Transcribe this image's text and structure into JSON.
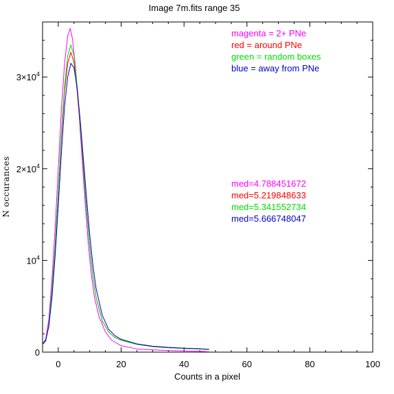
{
  "chart_data": {
    "type": "line",
    "title": "Image 7m.fits   range 35",
    "xlabel": "Counts in a pixel",
    "ylabel": "N occurances",
    "xlim": [
      -5,
      100
    ],
    "ylim": [
      0,
      36000
    ],
    "x_ticks": [
      0,
      20,
      40,
      60,
      80,
      100
    ],
    "x_tick_labels": [
      "0",
      "20",
      "40",
      "60",
      "80",
      "100"
    ],
    "y_ticks": [
      0,
      10000,
      20000,
      30000
    ],
    "y_tick_labels": [
      {
        "base": "0",
        "exp": ""
      },
      {
        "base": "10",
        "exp": "4"
      },
      {
        "base": "2×10",
        "exp": "4"
      },
      {
        "base": "3×10",
        "exp": "4"
      }
    ],
    "legend_position": "top-right",
    "series": [
      {
        "name": "magenta = 2+ PNe",
        "color": "#ff00ff",
        "points": [
          [
            -5,
            900
          ],
          [
            -4,
            1400
          ],
          [
            -3,
            3600
          ],
          [
            -2,
            8000
          ],
          [
            -1,
            13500
          ],
          [
            0,
            20000
          ],
          [
            1,
            26500
          ],
          [
            2,
            31500
          ],
          [
            3,
            34500
          ],
          [
            3.8,
            35300
          ],
          [
            4.5,
            34200
          ],
          [
            5.5,
            31000
          ],
          [
            6.5,
            26500
          ],
          [
            7.5,
            21500
          ],
          [
            8.5,
            16500
          ],
          [
            9.5,
            12000
          ],
          [
            10.5,
            8500
          ],
          [
            11.5,
            6000
          ],
          [
            13,
            3800
          ],
          [
            15,
            2200
          ],
          [
            17,
            1300
          ],
          [
            20,
            700
          ],
          [
            25,
            350
          ],
          [
            30,
            250
          ],
          [
            35,
            180
          ],
          [
            40,
            130
          ],
          [
            45,
            80
          ],
          [
            48,
            50
          ]
        ],
        "median_label": "med=4.788451672"
      },
      {
        "name": "red = around PNe",
        "color": "#ff0000",
        "points": [
          [
            -5,
            800
          ],
          [
            -4,
            1200
          ],
          [
            -3,
            3000
          ],
          [
            -2,
            6800
          ],
          [
            -1,
            11500
          ],
          [
            0,
            17500
          ],
          [
            1,
            23500
          ],
          [
            2,
            28500
          ],
          [
            3,
            31500
          ],
          [
            4,
            32700
          ],
          [
            5,
            31600
          ],
          [
            6,
            28500
          ],
          [
            7,
            24500
          ],
          [
            8,
            20000
          ],
          [
            9,
            15500
          ],
          [
            10,
            11500
          ],
          [
            11,
            8300
          ],
          [
            12,
            6000
          ],
          [
            14,
            3400
          ],
          [
            16,
            2200
          ],
          [
            18,
            1600
          ],
          [
            20,
            1300
          ],
          [
            25,
            850
          ],
          [
            30,
            600
          ],
          [
            35,
            480
          ],
          [
            40,
            400
          ],
          [
            45,
            350
          ],
          [
            48,
            300
          ]
        ],
        "median_label": "med=5.219848633"
      },
      {
        "name": "green = random boxes",
        "color": "#00dd00",
        "points": [
          [
            -5,
            800
          ],
          [
            -4,
            1200
          ],
          [
            -3,
            3000
          ],
          [
            -2,
            6800
          ],
          [
            -1,
            11500
          ],
          [
            0,
            17500
          ],
          [
            1,
            24000
          ],
          [
            2,
            29000
          ],
          [
            3,
            32300
          ],
          [
            4,
            33500
          ],
          [
            5,
            32300
          ],
          [
            6,
            29000
          ],
          [
            7,
            24800
          ],
          [
            8,
            20200
          ],
          [
            9,
            15600
          ],
          [
            10,
            11500
          ],
          [
            11,
            8300
          ],
          [
            12,
            6000
          ],
          [
            14,
            3400
          ],
          [
            16,
            2200
          ],
          [
            18,
            1600
          ],
          [
            20,
            1300
          ],
          [
            25,
            850
          ],
          [
            30,
            600
          ],
          [
            35,
            480
          ],
          [
            40,
            400
          ],
          [
            45,
            350
          ],
          [
            48,
            300
          ]
        ],
        "median_label": "med=5.341552734"
      },
      {
        "name": "blue = away from PNe",
        "color": "#0000cc",
        "points": [
          [
            -5,
            900
          ],
          [
            -4,
            1300
          ],
          [
            -3,
            2800
          ],
          [
            -2,
            6000
          ],
          [
            -1,
            10500
          ],
          [
            0,
            16000
          ],
          [
            1,
            21800
          ],
          [
            2,
            26800
          ],
          [
            3,
            30000
          ],
          [
            4,
            31500
          ],
          [
            5,
            31000
          ],
          [
            6,
            28800
          ],
          [
            7,
            25200
          ],
          [
            8,
            21000
          ],
          [
            9,
            16800
          ],
          [
            10,
            12800
          ],
          [
            11,
            9500
          ],
          [
            12,
            7000
          ],
          [
            14,
            4000
          ],
          [
            16,
            2500
          ],
          [
            18,
            1800
          ],
          [
            20,
            1400
          ],
          [
            25,
            900
          ],
          [
            30,
            650
          ],
          [
            35,
            520
          ],
          [
            40,
            430
          ],
          [
            45,
            370
          ],
          [
            48,
            300
          ]
        ],
        "median_label": "med=5.666748047"
      }
    ]
  }
}
